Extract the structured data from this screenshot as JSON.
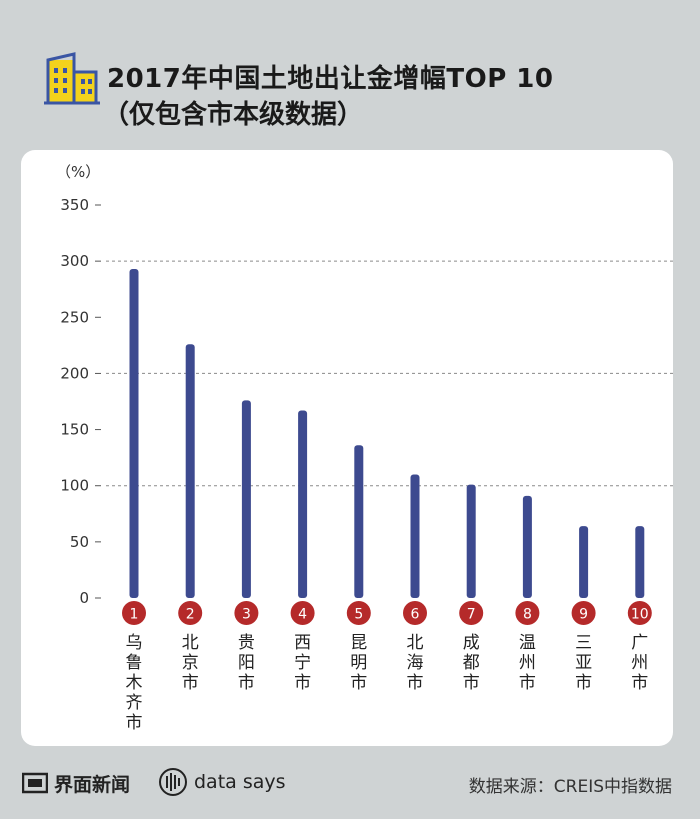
{
  "title": {
    "line1": "2017年中国土地出让金增幅TOP 10",
    "line2": "（仅包含市本级数据）"
  },
  "footer": {
    "brand": "界面新闻",
    "datasays": "data says",
    "source": "数据来源：CREIS中指数据"
  },
  "colors": {
    "bar": "#3d4a8f",
    "badge": "#b52a2a",
    "logo_yellow": "#f3d21c",
    "logo_blue": "#3a55a4"
  },
  "chart_data": {
    "type": "bar",
    "ylabel": "（%）",
    "ylim": [
      0,
      350
    ],
    "yticks": [
      0,
      50,
      100,
      150,
      200,
      250,
      300,
      350
    ],
    "dashed_gridlines": [
      100,
      200,
      300
    ],
    "categories": [
      "乌鲁木齐市",
      "北京市",
      "贵阳市",
      "西宁市",
      "昆明市",
      "北海市",
      "成都市",
      "温州市",
      "三亚市",
      "广州市"
    ],
    "ranks": [
      "1",
      "2",
      "3",
      "4",
      "5",
      "6",
      "7",
      "8",
      "9",
      "10"
    ],
    "values": [
      293,
      226,
      176,
      167,
      136,
      110,
      101,
      91,
      64,
      64
    ]
  }
}
